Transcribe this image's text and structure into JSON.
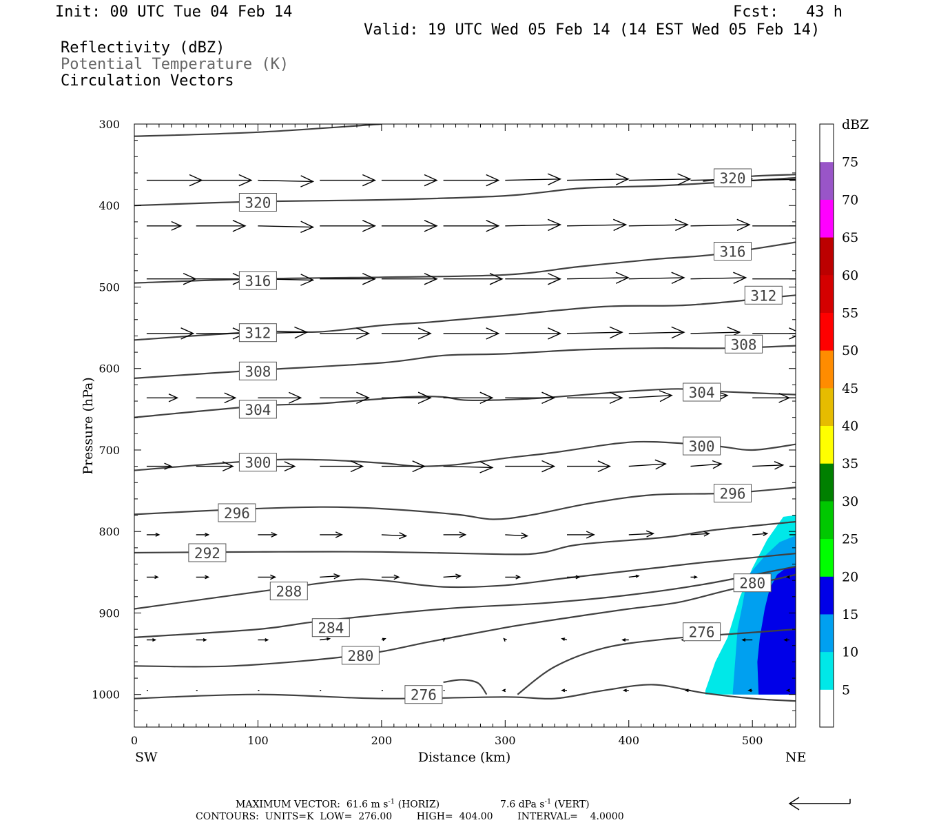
{
  "header": {
    "init": "Init: 00 UTC Tue 04 Feb 14",
    "fcst": "Fcst:   43 h",
    "valid": "Valid: 19 UTC Wed 05 Feb 14 (14 EST Wed 05 Feb 14)",
    "field1": "Reflectivity (dBZ)",
    "field2": "Potential Temperature (K)",
    "field3": "Circulation Vectors"
  },
  "footer": {
    "max_vector_prefix": "MAXIMUM VECTOR:  61.6 m s",
    "horiz_label": " (HORIZ)",
    "vert_value": "7.6 dPa s",
    "vert_label": " (VERT)",
    "exp": "-1",
    "contours": "CONTOURS:  UNITS=K  LOW=  276.00        HIGH=  404.00        INTERVAL=    4.0000"
  },
  "colors": {
    "contour": "#404040",
    "vector": "#000000",
    "potential_temp_text": "#666666"
  },
  "chart_data": {
    "type": "cross-section",
    "xlabel": "Distance (km)",
    "ylabel": "Pressure (hPa)",
    "x_end_left": "SW",
    "x_end_right": "NE",
    "xlim": [
      0,
      535
    ],
    "ylim": [
      1040,
      300
    ],
    "xticks": [
      0,
      100,
      200,
      300,
      400,
      500
    ],
    "yticks": [
      300,
      400,
      500,
      600,
      700,
      800,
      900,
      1000
    ],
    "colorbar": {
      "title": "dBZ",
      "levels": [
        5,
        10,
        15,
        20,
        25,
        30,
        35,
        40,
        45,
        50,
        55,
        60,
        65,
        70,
        75
      ],
      "colors": [
        "#ffffff",
        "#00e8e8",
        "#00a0f0",
        "#0000e8",
        "#00ff00",
        "#00c800",
        "#008000",
        "#ffff00",
        "#e6bc00",
        "#ff8c00",
        "#ff0000",
        "#d40000",
        "#bc0000",
        "#ff00ff",
        "#9955c8",
        "#ffffff"
      ]
    },
    "reflectivity_areas": [
      {
        "dbz_min": 5,
        "color": "#00e8e8",
        "points": [
          [
            462,
            995
          ],
          [
            470,
            960
          ],
          [
            480,
            930
          ],
          [
            490,
            880
          ],
          [
            500,
            845
          ],
          [
            512,
            810
          ],
          [
            525,
            782
          ],
          [
            535,
            780
          ],
          [
            535,
            1000
          ],
          [
            462,
            1000
          ]
        ]
      },
      {
        "dbz_min": 10,
        "color": "#00a0f0",
        "points": [
          [
            484,
            1000
          ],
          [
            486,
            960
          ],
          [
            488,
            920
          ],
          [
            492,
            890
          ],
          [
            496,
            855
          ],
          [
            510,
            830
          ],
          [
            522,
            813
          ],
          [
            535,
            805
          ],
          [
            535,
            1000
          ]
        ]
      },
      {
        "dbz_min": 15,
        "color": "#0000e8",
        "points": [
          [
            505,
            1000
          ],
          [
            504,
            960
          ],
          [
            506,
            930
          ],
          [
            510,
            895
          ],
          [
            514,
            870
          ],
          [
            520,
            853
          ],
          [
            527,
            845
          ],
          [
            535,
            843
          ],
          [
            535,
            1000
          ]
        ]
      }
    ],
    "isentropes": [
      {
        "value": 276,
        "label": "276",
        "points": [
          [
            0,
            1005
          ],
          [
            100,
            1000
          ],
          [
            200,
            1005
          ],
          [
            300,
            1003
          ],
          [
            340,
            1005
          ],
          [
            380,
            995
          ],
          [
            420,
            988
          ],
          [
            460,
            998
          ],
          [
            500,
            1005
          ],
          [
            535,
            1008
          ]
        ]
      },
      {
        "value": 276,
        "label": "276",
        "points": [
          [
            310,
            1000
          ],
          [
            340,
            966
          ],
          [
            380,
            943
          ],
          [
            430,
            932
          ],
          [
            490,
            925
          ],
          [
            535,
            920
          ]
        ]
      },
      {
        "value": 276,
        "label": "",
        "points": [
          [
            250,
            985
          ],
          [
            265,
            982
          ],
          [
            278,
            986
          ],
          [
            285,
            1000
          ]
        ]
      },
      {
        "value": 280,
        "label": "280",
        "points": [
          [
            0,
            965
          ],
          [
            80,
            965
          ],
          [
            180,
            952
          ],
          [
            240,
            935
          ],
          [
            300,
            918
          ],
          [
            350,
            906
          ],
          [
            400,
            895
          ],
          [
            440,
            887
          ],
          [
            480,
            872
          ],
          [
            535,
            853
          ]
        ]
      },
      {
        "value": 284,
        "label": "284",
        "points": [
          [
            0,
            930
          ],
          [
            100,
            920
          ],
          [
            150,
            910
          ],
          [
            250,
            895
          ],
          [
            330,
            888
          ],
          [
            400,
            878
          ],
          [
            460,
            865
          ],
          [
            535,
            843
          ]
        ]
      },
      {
        "value": 288,
        "label": "288",
        "points": [
          [
            0,
            895
          ],
          [
            100,
            874
          ],
          [
            170,
            860
          ],
          [
            200,
            860
          ],
          [
            250,
            868
          ],
          [
            300,
            866
          ],
          [
            350,
            857
          ],
          [
            420,
            845
          ],
          [
            460,
            838
          ],
          [
            535,
            827
          ]
        ]
      },
      {
        "value": 292,
        "label": "292",
        "points": [
          [
            0,
            826
          ],
          [
            100,
            825
          ],
          [
            200,
            825
          ],
          [
            300,
            828
          ],
          [
            330,
            826
          ],
          [
            360,
            816
          ],
          [
            430,
            807
          ],
          [
            470,
            798
          ],
          [
            535,
            788
          ]
        ]
      },
      {
        "value": 296,
        "label": "296",
        "points": [
          [
            0,
            779
          ],
          [
            80,
            773
          ],
          [
            150,
            770
          ],
          [
            200,
            772
          ],
          [
            260,
            779
          ],
          [
            290,
            785
          ],
          [
            320,
            780
          ],
          [
            370,
            765
          ],
          [
            420,
            755
          ],
          [
            480,
            753
          ],
          [
            535,
            746
          ]
        ]
      },
      {
        "value": 300,
        "label": "300",
        "points": [
          [
            0,
            725
          ],
          [
            100,
            713
          ],
          [
            150,
            712
          ],
          [
            200,
            716
          ],
          [
            230,
            720
          ],
          [
            260,
            718
          ],
          [
            300,
            710
          ],
          [
            340,
            703
          ],
          [
            390,
            692
          ],
          [
            420,
            690
          ],
          [
            470,
            695
          ],
          [
            500,
            700
          ],
          [
            535,
            693
          ]
        ]
      },
      {
        "value": 304,
        "label": "304",
        "points": [
          [
            0,
            660
          ],
          [
            100,
            646
          ],
          [
            150,
            643
          ],
          [
            220,
            635
          ],
          [
            250,
            635
          ],
          [
            270,
            639
          ],
          [
            320,
            637
          ],
          [
            400,
            628
          ],
          [
            440,
            625
          ],
          [
            470,
            628
          ],
          [
            535,
            632
          ]
        ]
      },
      {
        "value": 308,
        "label": "308",
        "points": [
          [
            0,
            612
          ],
          [
            100,
            602
          ],
          [
            200,
            593
          ],
          [
            250,
            584
          ],
          [
            300,
            582
          ],
          [
            360,
            577
          ],
          [
            420,
            575
          ],
          [
            480,
            575
          ],
          [
            535,
            572
          ]
        ]
      },
      {
        "value": 312,
        "label": "312",
        "points": [
          [
            0,
            565
          ],
          [
            100,
            555
          ],
          [
            150,
            555
          ],
          [
            200,
            547
          ],
          [
            240,
            543
          ],
          [
            300,
            535
          ],
          [
            380,
            524
          ],
          [
            450,
            522
          ],
          [
            535,
            510
          ]
        ]
      },
      {
        "value": 316,
        "label": "316",
        "points": [
          [
            0,
            495
          ],
          [
            100,
            490
          ],
          [
            200,
            488
          ],
          [
            300,
            485
          ],
          [
            360,
            475
          ],
          [
            420,
            466
          ],
          [
            470,
            460
          ],
          [
            535,
            445
          ]
        ]
      },
      {
        "value": 320,
        "label": "320",
        "points": [
          [
            0,
            400
          ],
          [
            100,
            395
          ],
          [
            200,
            393
          ],
          [
            300,
            388
          ],
          [
            360,
            379
          ],
          [
            420,
            376
          ],
          [
            470,
            372
          ],
          [
            535,
            366
          ]
        ]
      },
      {
        "value": 320,
        "label": "320",
        "points": [
          [
            460,
            370
          ],
          [
            500,
            364
          ],
          [
            535,
            362
          ]
        ]
      },
      {
        "value": 324,
        "label": "",
        "points": [
          [
            0,
            315
          ],
          [
            100,
            310
          ],
          [
            200,
            300
          ]
        ]
      }
    ],
    "isentrope_labels": [
      {
        "text": "276",
        "x": 234,
        "y": 1000
      },
      {
        "text": "276",
        "x": 459,
        "y": 923
      },
      {
        "text": "280",
        "x": 183,
        "y": 952
      },
      {
        "text": "280",
        "x": 500,
        "y": 863
      },
      {
        "text": "284",
        "x": 159,
        "y": 918
      },
      {
        "text": "288",
        "x": 125,
        "y": 873
      },
      {
        "text": "292",
        "x": 59,
        "y": 826
      },
      {
        "text": "296",
        "x": 83,
        "y": 777
      },
      {
        "text": "296",
        "x": 484,
        "y": 753
      },
      {
        "text": "300",
        "x": 100,
        "y": 715
      },
      {
        "text": "300",
        "x": 459,
        "y": 695
      },
      {
        "text": "304",
        "x": 100,
        "y": 650
      },
      {
        "text": "304",
        "x": 459,
        "y": 629
      },
      {
        "text": "308",
        "x": 100,
        "y": 603
      },
      {
        "text": "308",
        "x": 493,
        "y": 570
      },
      {
        "text": "312",
        "x": 100,
        "y": 556
      },
      {
        "text": "312",
        "x": 509,
        "y": 510
      },
      {
        "text": "316",
        "x": 100,
        "y": 492
      },
      {
        "text": "316",
        "x": 484,
        "y": 456
      },
      {
        "text": "320",
        "x": 100,
        "y": 396
      },
      {
        "text": "320",
        "x": 484,
        "y": 366
      }
    ],
    "vector_rows": [
      {
        "p": 369,
        "u": [
          45,
          45,
          45,
          45,
          45,
          45,
          45,
          50,
          50,
          50,
          50,
          50
        ],
        "v": [
          0,
          0,
          -1,
          0,
          0,
          0,
          1,
          1,
          1,
          1,
          1,
          1
        ]
      },
      {
        "p": 425,
        "u": [
          28,
          40,
          45,
          45,
          45,
          45,
          45,
          48,
          48,
          48,
          48,
          35
        ],
        "v": [
          0,
          0,
          -1,
          0,
          0,
          0,
          1,
          1,
          1,
          1,
          0,
          0
        ]
      },
      {
        "p": 490,
        "u": [
          40,
          40,
          45,
          45,
          45,
          48,
          45,
          50,
          45,
          45,
          45,
          35
        ],
        "v": [
          0,
          0,
          -1,
          0,
          0,
          0,
          0,
          1,
          1,
          1,
          0,
          0
        ]
      },
      {
        "p": 557,
        "u": [
          38,
          40,
          40,
          40,
          40,
          45,
          45,
          45,
          45,
          40,
          40,
          35
        ],
        "v": [
          0,
          0,
          1,
          0,
          0,
          0,
          0,
          1,
          1,
          1,
          0,
          0
        ]
      },
      {
        "p": 636,
        "u": [
          25,
          32,
          35,
          40,
          40,
          40,
          40,
          45,
          35,
          30,
          30,
          25
        ],
        "v": [
          0,
          0,
          0,
          0,
          0,
          0,
          0,
          0,
          2,
          2,
          0,
          0
        ]
      },
      {
        "p": 720,
        "u": [
          20,
          30,
          30,
          35,
          35,
          40,
          40,
          35,
          30,
          25,
          25,
          25
        ],
        "v": [
          0,
          0,
          0,
          0,
          0,
          -1,
          0,
          0,
          2,
          2,
          1,
          0
        ]
      },
      {
        "p": 804,
        "u": [
          10,
          10,
          15,
          18,
          20,
          18,
          18,
          22,
          20,
          15,
          12,
          10
        ],
        "v": [
          0,
          0,
          0,
          0,
          -1,
          0,
          -1,
          0,
          1,
          1,
          1,
          0
        ]
      },
      {
        "p": 856,
        "u": [
          9,
          10,
          14,
          16,
          14,
          14,
          12,
          10,
          8,
          5,
          -2,
          -2
        ],
        "v": [
          0,
          0,
          0,
          1,
          0,
          1,
          0,
          0,
          1,
          0,
          0,
          0
        ]
      },
      {
        "p": 933,
        "u": [
          7,
          8,
          8,
          8,
          3,
          1,
          -1,
          -4,
          -5,
          -7,
          -8,
          -4
        ],
        "v": [
          0,
          0,
          0,
          1,
          1,
          1,
          1,
          1,
          0,
          0,
          0,
          0
        ]
      },
      {
        "p": 995,
        "u": [
          1,
          1,
          1,
          1,
          1,
          0,
          -2,
          -4,
          -4,
          -4,
          -3,
          -2
        ],
        "v": [
          0,
          0,
          0,
          0,
          0,
          0,
          0,
          0,
          0,
          0,
          0,
          0
        ]
      }
    ],
    "vector_x": [
      10,
      50,
      100,
      150,
      200,
      250,
      300,
      350,
      400,
      450,
      500,
      530
    ]
  }
}
